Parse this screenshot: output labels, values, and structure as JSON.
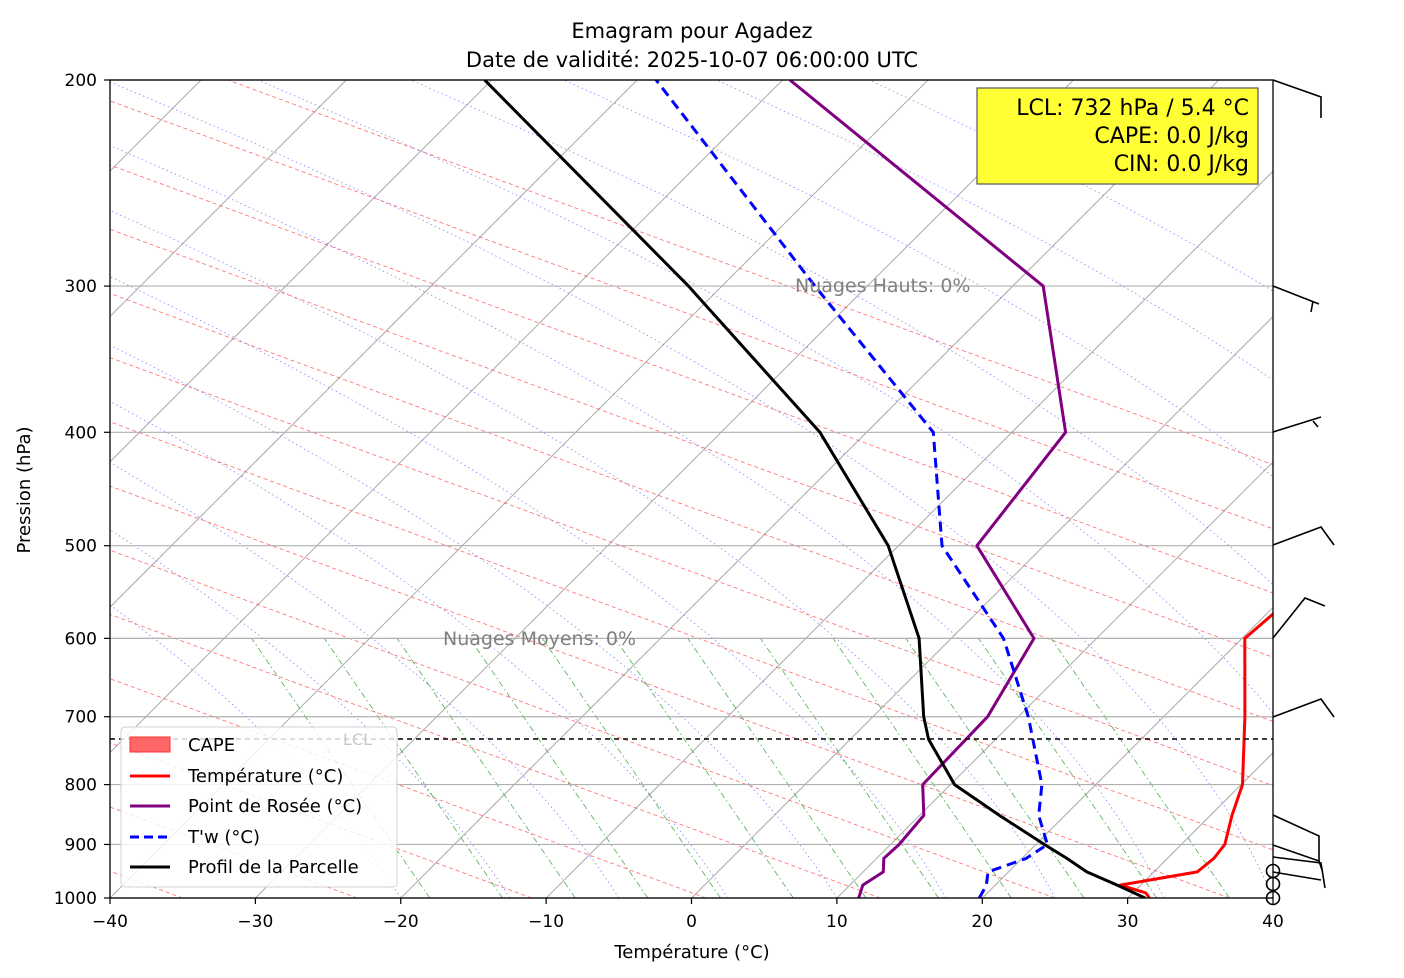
{
  "title_line1": "Emagram pour Agadez",
  "title_line2": "Date de validité: 2025-10-07 06:00:00 UTC",
  "info_box": {
    "line1": "LCL: 732 hPa / 5.4 °C",
    "line2": "CAPE: 0.0 J/kg",
    "line3": "CIN: 0.0 J/kg",
    "background": "#ffff33"
  },
  "annotations": {
    "high_clouds": "Nuages Hauts: 0%",
    "mid_clouds": "Nuages Moyens: 0%",
    "lcl": "LCL"
  },
  "legend": {
    "cape": "CAPE",
    "temp": "Température (°C)",
    "dew": "Point de Rosée (°C)",
    "tw": "T'w (°C)",
    "parcel": "Profil de la Parcelle"
  },
  "colors": {
    "temperature": "#ff0000",
    "dewpoint": "#800080",
    "wetbulb": "#0000ff",
    "parcel": "#000000",
    "cape": "#ff6666",
    "dry_adiabat": "#ff4444",
    "moist_adiabat": "#6666ff",
    "mixing_ratio": "#2ca02c",
    "isotherm": "#b0b0b0"
  },
  "chart_data": {
    "type": "line",
    "chart_kind": "emagram (skew-T, log-p)",
    "title": "Emagram pour Agadez\nDate de validité: 2025-10-07 06:00:00 UTC",
    "xlabel": "Température (°C)",
    "ylabel": "Pression (hPa)",
    "xlim": [
      -40,
      40
    ],
    "ylim": [
      1000,
      200
    ],
    "yscale": "log",
    "xticks": [
      "−40",
      "−30",
      "−20",
      "−10",
      "0",
      "10",
      "20",
      "30",
      "40"
    ],
    "yticks": [
      "1000",
      "900",
      "800",
      "700",
      "600",
      "500",
      "400",
      "300",
      "200"
    ],
    "grid": true,
    "legend_position": "lower-left",
    "lcl_pressure": 732,
    "series": [
      {
        "name": "Température (°C)",
        "pressure": [
          1000,
          990,
          975,
          950,
          925,
          900,
          850,
          800,
          700,
          600,
          500,
          400,
          300,
          200
        ],
        "temperature": [
          31.5,
          30.9,
          28.6,
          33.0,
          33.2,
          33.0,
          31.5,
          30.1,
          25.6,
          20.2,
          21.2,
          13.8,
          5.7,
          -15.2
        ]
      },
      {
        "name": "Point de Rosée (°C)",
        "pressure": [
          1000,
          975,
          950,
          925,
          900,
          850,
          800,
          700,
          600,
          500,
          400,
          300,
          200
        ],
        "temperature": [
          11.5,
          10.9,
          11.4,
          10.5,
          10.6,
          10.3,
          8.1,
          7.9,
          5.7,
          -4.6,
          -6.3,
          -17.9,
          -49.5
        ]
      },
      {
        "name": "T'w (°C)",
        "pressure": [
          1000,
          975,
          950,
          925,
          900,
          850,
          800,
          700,
          600,
          500,
          400,
          300,
          200
        ],
        "temperature": [
          19.8,
          19.4,
          18.6,
          20.3,
          20.8,
          18.2,
          16.3,
          10.7,
          3.6,
          -7.0,
          -15.4,
          -33.6,
          -58.7
        ]
      },
      {
        "name": "Profil de la Parcelle",
        "pressure": [
          1000,
          975,
          950,
          925,
          900,
          850,
          800,
          732,
          700,
          600,
          500,
          400,
          300,
          200
        ],
        "temperature": [
          31.2,
          28.4,
          25.4,
          23.1,
          20.6,
          15.5,
          10.3,
          5.4,
          3.5,
          -2.2,
          -10.7,
          -23.2,
          -42.3,
          -70.5
        ]
      }
    ]
  }
}
